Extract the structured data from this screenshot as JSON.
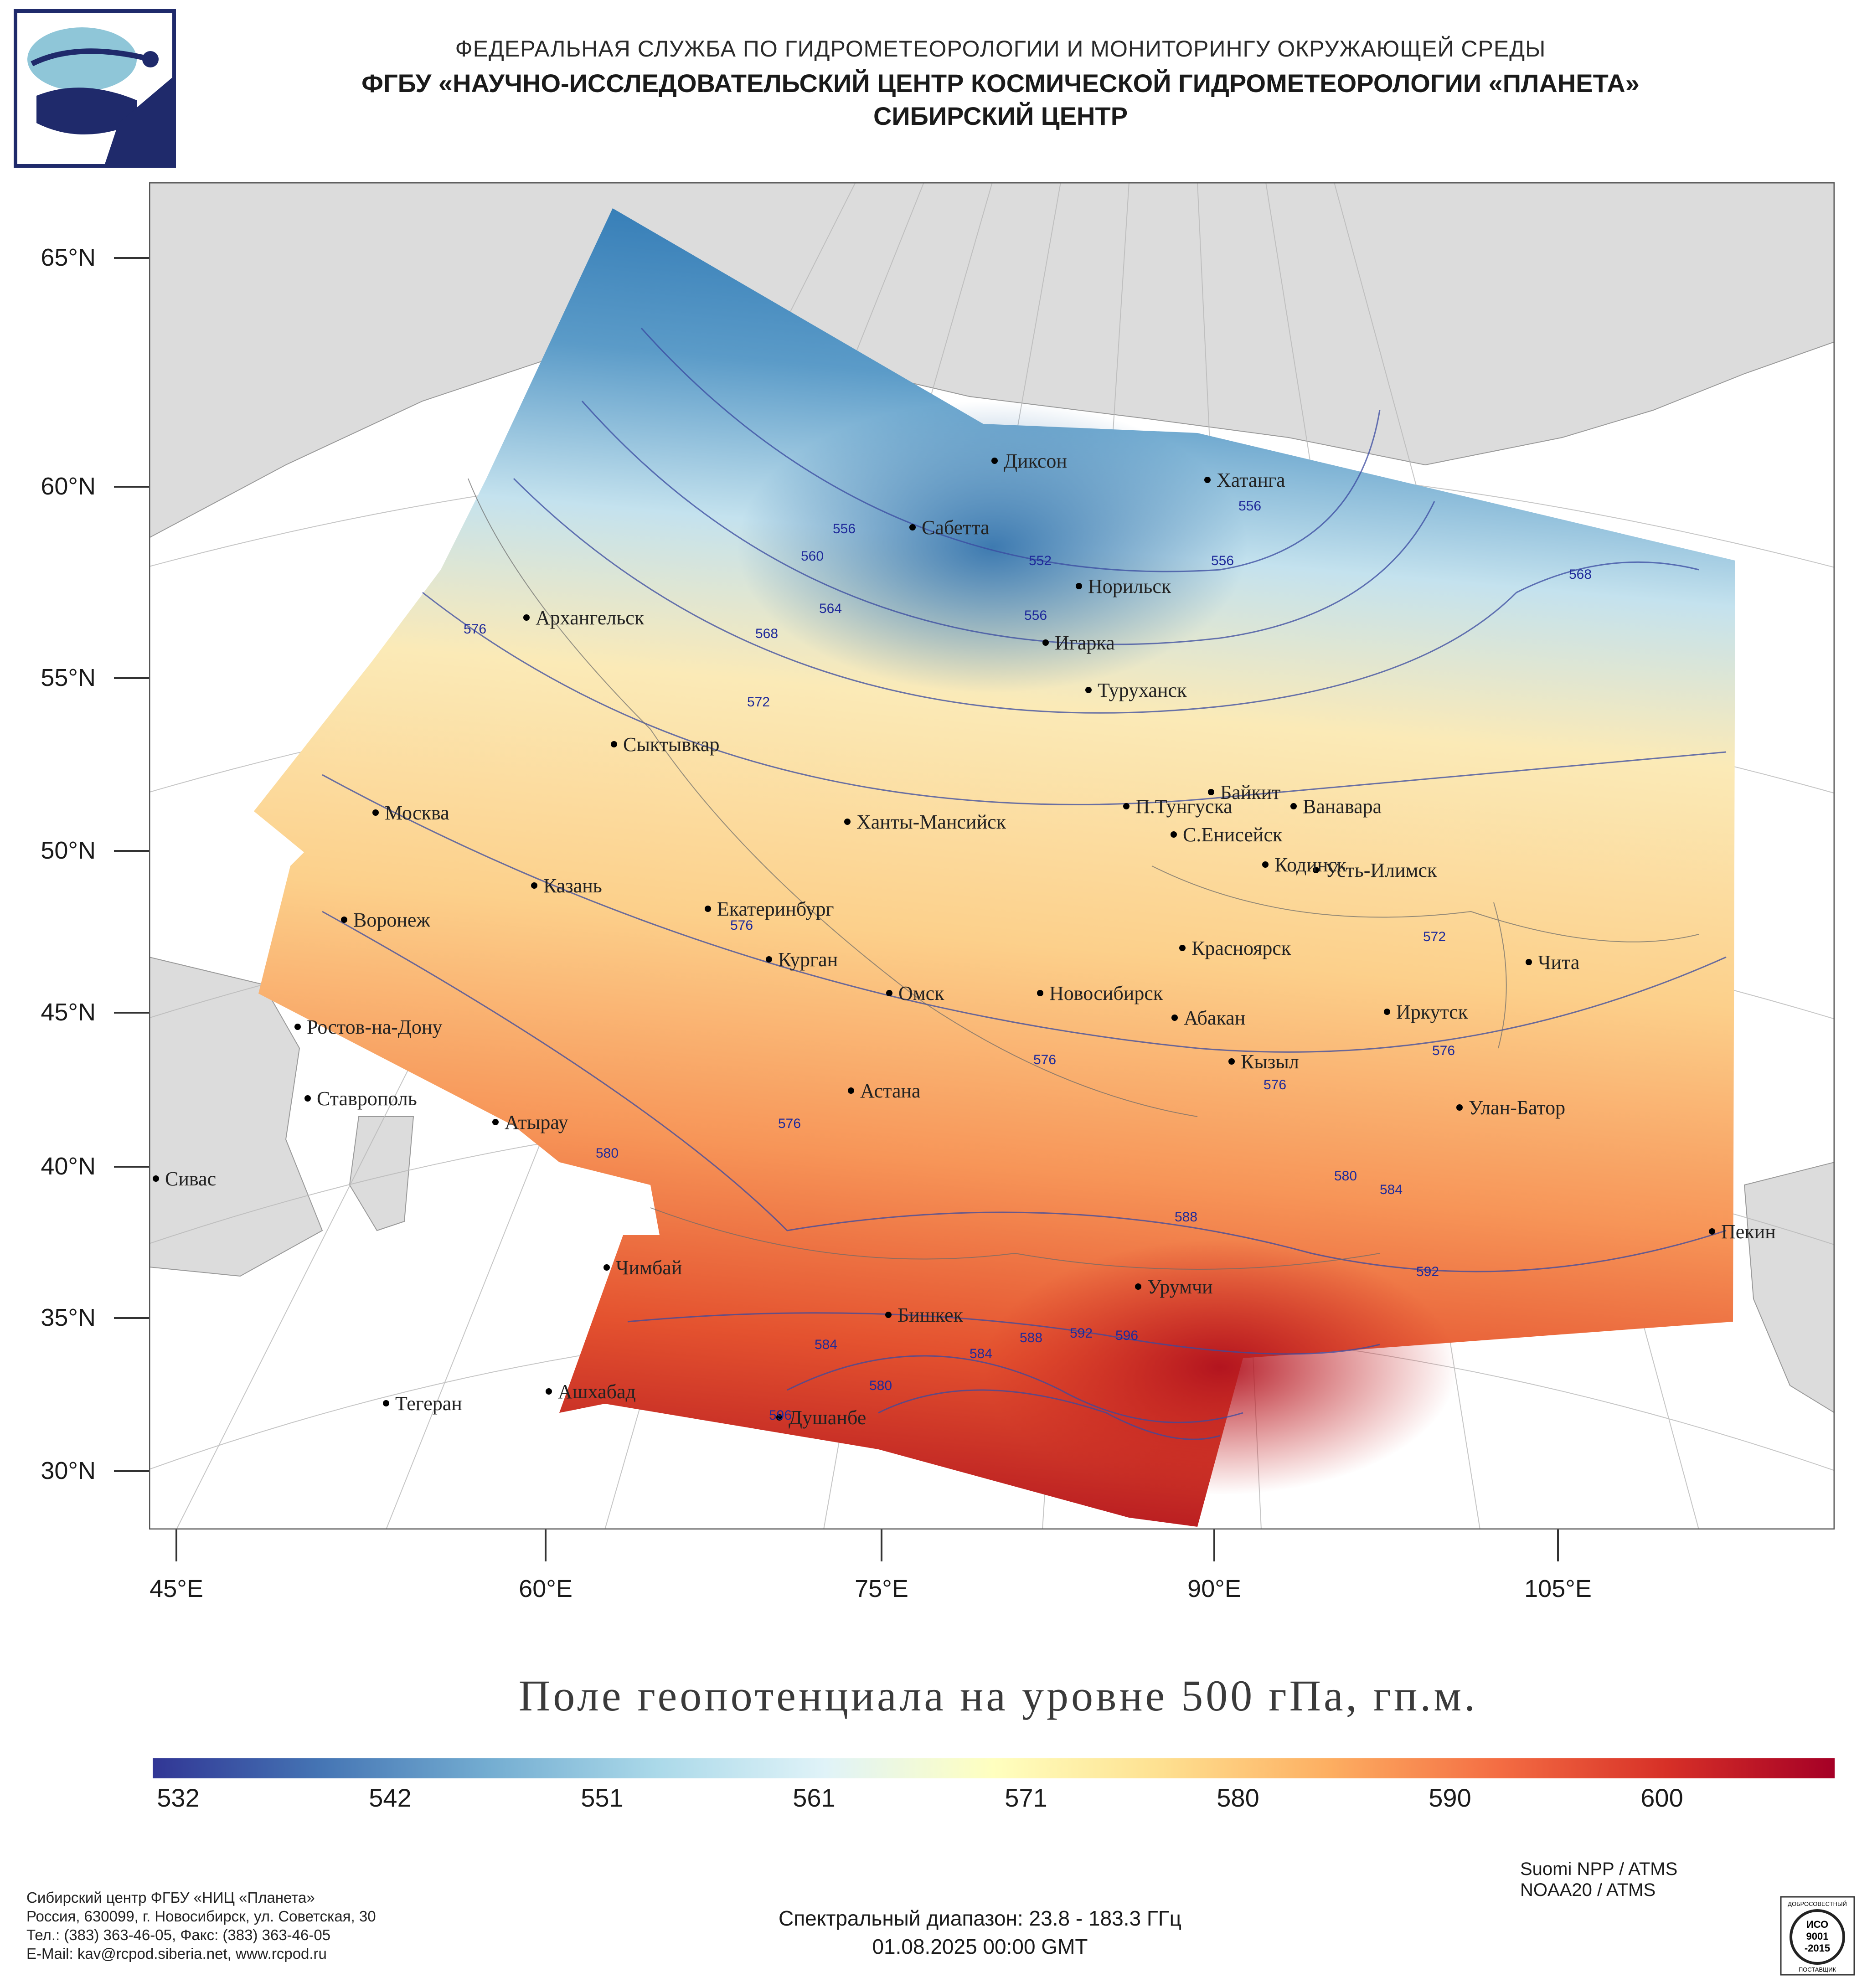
{
  "header": {
    "line1": "ФЕДЕРАЛЬНАЯ СЛУЖБА ПО ГИДРОМЕТЕОРОЛОГИИ И МОНИТОРИНГУ ОКРУЖАЮЩЕЙ СРЕДЫ",
    "line2": "ФГБУ «НАУЧНО-ИССЛЕДОВАТЕЛЬСКИЙ ЦЕНТР КОСМИЧЕСКОЙ ГИДРОМЕТЕОРОЛОГИИ «ПЛАНЕТА»",
    "line3": "СИБИРСКИЙ ЦЕНТР"
  },
  "map": {
    "lat_labels": [
      "65°N",
      "60°N",
      "55°N",
      "50°N",
      "45°N",
      "40°N",
      "35°N",
      "30°N"
    ],
    "lon_labels": [
      "45°E",
      "60°E",
      "75°E",
      "90°E",
      "105°E"
    ],
    "cities": [
      "Диксон",
      "Хатанга",
      "Сабетта",
      "Норильск",
      "Архангельск",
      "Игарка",
      "Туруханск",
      "Сыктывкар",
      "Байкит",
      "Москва",
      "П.Тунгуска",
      "Ванавара",
      "Ханты-Мансийск",
      "С.Енисейск",
      "Кодинск",
      "Усть-Илимск",
      "Казань",
      "Екатеринбург",
      "Воронеж",
      "Красноярск",
      "Чита",
      "Курган",
      "Омск",
      "Новосибирск",
      "Иркутск",
      "Абакан",
      "Ростов-на-Дону",
      "Кызыл",
      "Астана",
      "Ставрополь",
      "Улан-Батор",
      "Атырау",
      "Сивас",
      "Пекин",
      "Чимбай",
      "Урумчи",
      "Бишкек",
      "Ашхабад",
      "Тегеран",
      "Душанбе"
    ],
    "contour_labels": [
      "552",
      "556",
      "556",
      "556",
      "556",
      "560",
      "564",
      "568",
      "568",
      "572",
      "572",
      "576",
      "576",
      "576",
      "576",
      "576",
      "576",
      "580",
      "580",
      "580",
      "584",
      "584",
      "584",
      "588",
      "588",
      "592",
      "592",
      "596",
      "596"
    ]
  },
  "map_title": "Поле геопотенциала на уровне 500 гПа, гп.м.",
  "colorbar": {
    "ticks": [
      "532",
      "542",
      "551",
      "561",
      "571",
      "580",
      "590",
      "600"
    ],
    "colors": [
      "#313695",
      "#4575b4",
      "#74add1",
      "#abd9e9",
      "#e0f3f8",
      "#ffffbf",
      "#fee090",
      "#fdae61",
      "#f46d43",
      "#d73027",
      "#a50026"
    ]
  },
  "footer": {
    "org": [
      "Сибирский центр ФГБУ «НИЦ «Планета»",
      "Россия, 630099, г. Новосибирск, ул. Советская, 30",
      "Тел.: (383) 363-46-05, Факс: (383) 363-46-05",
      "E-Mail: kav@rcpod.siberia.net, www.rcpod.ru"
    ],
    "satellites": [
      "Suomi NPP / ATMS",
      "NOAA20 / ATMS"
    ],
    "spectral": "Спектральный диапазон: 23.8 - 183.3 ГГц",
    "datetime": "01.08.2025 00:00 GMT",
    "cert": [
      "ДОБРОСОВЕСТНЫЙ",
      "ИСО",
      "9001",
      "-2015",
      "ПОСТАВЩИК"
    ]
  }
}
